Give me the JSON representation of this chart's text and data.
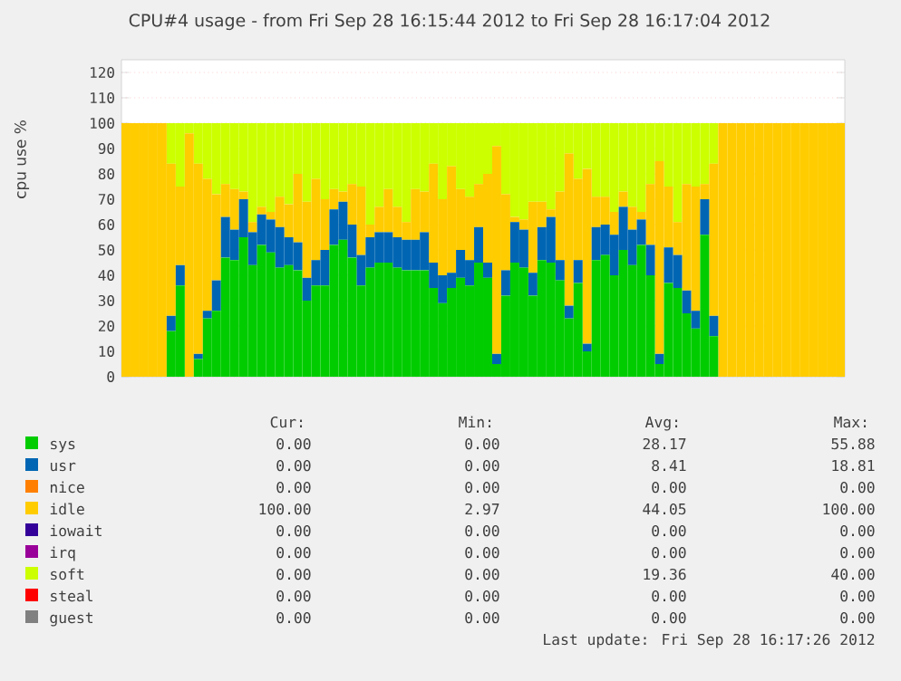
{
  "chart_data": {
    "type": "bar",
    "stacked": true,
    "title": "CPU#4 usage - from Fri Sep 28 16:15:44 2012 to Fri Sep 28 16:17:04 2012",
    "ylabel": "cpu use %",
    "categories": [
      null,
      null,
      null,
      null,
      null,
      null,
      null,
      null,
      null,
      null,
      null,
      null,
      null,
      null,
      null,
      null,
      null,
      null,
      null,
      null,
      null,
      null,
      null,
      null,
      null,
      null,
      null,
      null,
      null,
      null,
      null,
      null,
      null,
      null,
      null,
      null,
      null,
      null,
      null,
      null,
      null,
      null,
      null,
      null,
      null,
      null,
      null,
      null,
      null,
      null,
      null,
      null,
      null,
      null,
      null,
      null,
      null,
      null,
      null,
      null,
      null,
      null,
      null,
      null,
      null,
      null,
      null,
      null,
      null,
      null,
      null,
      null,
      null,
      null,
      null,
      null,
      null,
      null,
      null,
      null
    ],
    "ylim": [
      0,
      125
    ],
    "yticks": [
      0,
      10,
      20,
      30,
      40,
      50,
      60,
      70,
      80,
      90,
      100,
      110,
      120
    ],
    "grid": "y",
    "legend": "bottom",
    "tick_labels": "y",
    "series": [
      {
        "name": "sys",
        "color": "#00cc00",
        "values": [
          0,
          0,
          0,
          0,
          0,
          18,
          36,
          0,
          7,
          23,
          26,
          47,
          46,
          55,
          44,
          52,
          49,
          43,
          44,
          42,
          30,
          36,
          36,
          52,
          54,
          47,
          36,
          43,
          45,
          45,
          43,
          42,
          42,
          42,
          35,
          29,
          35,
          39,
          36,
          45,
          39,
          5,
          32,
          45,
          43,
          32,
          46,
          45,
          38,
          23,
          37,
          10,
          46,
          48,
          40,
          50,
          44,
          52,
          40,
          5,
          37,
          35,
          25,
          19,
          56,
          16,
          0,
          0,
          0,
          0,
          0,
          0,
          0,
          0,
          0,
          0,
          0,
          0,
          0,
          0
        ]
      },
      {
        "name": "usr",
        "color": "#0066b3",
        "values": [
          0,
          0,
          0,
          0,
          0,
          6,
          8,
          0,
          2,
          3,
          12,
          16,
          12,
          15,
          13,
          12,
          13,
          16,
          11,
          11,
          9,
          10,
          14,
          14,
          15,
          13,
          12,
          12,
          12,
          12,
          12,
          12,
          12,
          15,
          10,
          11,
          6,
          11,
          10,
          14,
          6,
          4,
          10,
          16,
          15,
          9,
          13,
          18,
          8,
          5,
          9,
          3,
          13,
          12,
          16,
          17,
          14,
          10,
          12,
          4,
          14,
          13,
          9,
          7,
          14,
          8,
          0,
          0,
          0,
          0,
          0,
          0,
          0,
          0,
          0,
          0,
          0,
          0,
          0,
          0
        ]
      },
      {
        "name": "nice",
        "color": "#ff8000",
        "values": [
          0,
          0,
          0,
          0,
          0,
          0,
          0,
          0,
          0,
          0,
          0,
          0,
          0,
          0,
          0,
          0,
          0,
          0,
          0,
          0,
          0,
          0,
          0,
          0,
          0,
          0,
          0,
          0,
          0,
          0,
          0,
          0,
          0,
          0,
          0,
          0,
          0,
          0,
          0,
          0,
          0,
          0,
          0,
          0,
          0,
          0,
          0,
          0,
          0,
          0,
          0,
          0,
          0,
          0,
          0,
          0,
          0,
          0,
          0,
          0,
          0,
          0,
          0,
          0,
          0,
          0,
          0,
          0,
          0,
          0,
          0,
          0,
          0,
          0,
          0,
          0,
          0,
          0,
          0,
          0
        ]
      },
      {
        "name": "idle",
        "color": "#ffcc00",
        "values": [
          100,
          100,
          100,
          100,
          100,
          60,
          31,
          96,
          75,
          52,
          34,
          13,
          16,
          3,
          4,
          3,
          3,
          12,
          13,
          27,
          30,
          32,
          20,
          8,
          4,
          16,
          27,
          5,
          10,
          17,
          12,
          7,
          20,
          16,
          39,
          30,
          42,
          24,
          25,
          17,
          35,
          82,
          30,
          2,
          4,
          28,
          10,
          3,
          27,
          60,
          32,
          69,
          12,
          11,
          9,
          6,
          9,
          3,
          24,
          76,
          24,
          13,
          42,
          49,
          6,
          60,
          100,
          100,
          100,
          100,
          100,
          100,
          100,
          100,
          100,
          100,
          100,
          100,
          100,
          100
        ]
      },
      {
        "name": "iowait",
        "color": "#330099",
        "values": [
          0,
          0,
          0,
          0,
          0,
          0,
          0,
          0,
          0,
          0,
          0,
          0,
          0,
          0,
          0,
          0,
          0,
          0,
          0,
          0,
          0,
          0,
          0,
          0,
          0,
          0,
          0,
          0,
          0,
          0,
          0,
          0,
          0,
          0,
          0,
          0,
          0,
          0,
          0,
          0,
          0,
          0,
          0,
          0,
          0,
          0,
          0,
          0,
          0,
          0,
          0,
          0,
          0,
          0,
          0,
          0,
          0,
          0,
          0,
          0,
          0,
          0,
          0,
          0,
          0,
          0,
          0,
          0,
          0,
          0,
          0,
          0,
          0,
          0,
          0,
          0,
          0,
          0,
          0,
          0
        ]
      },
      {
        "name": "irq",
        "color": "#990099",
        "values": [
          0,
          0,
          0,
          0,
          0,
          0,
          0,
          0,
          0,
          0,
          0,
          0,
          0,
          0,
          0,
          0,
          0,
          0,
          0,
          0,
          0,
          0,
          0,
          0,
          0,
          0,
          0,
          0,
          0,
          0,
          0,
          0,
          0,
          0,
          0,
          0,
          0,
          0,
          0,
          0,
          0,
          0,
          0,
          0,
          0,
          0,
          0,
          0,
          0,
          0,
          0,
          0,
          0,
          0,
          0,
          0,
          0,
          0,
          0,
          0,
          0,
          0,
          0,
          0,
          0,
          0,
          0,
          0,
          0,
          0,
          0,
          0,
          0,
          0,
          0,
          0,
          0,
          0,
          0,
          0
        ]
      },
      {
        "name": "soft",
        "color": "#ccff00",
        "values": [
          0,
          0,
          0,
          0,
          0,
          16,
          25,
          4,
          16,
          22,
          28,
          24,
          26,
          27,
          39,
          33,
          35,
          29,
          32,
          20,
          31,
          22,
          30,
          26,
          27,
          24,
          25,
          40,
          33,
          26,
          33,
          39,
          26,
          27,
          16,
          30,
          17,
          26,
          29,
          24,
          20,
          9,
          28,
          37,
          38,
          31,
          31,
          34,
          27,
          12,
          22,
          18,
          29,
          29,
          35,
          27,
          33,
          35,
          24,
          15,
          25,
          39,
          24,
          25,
          24,
          16,
          0,
          0,
          0,
          0,
          0,
          0,
          0,
          0,
          0,
          0,
          0,
          0,
          0,
          0
        ]
      },
      {
        "name": "steal",
        "color": "#ff0000",
        "values": [
          0,
          0,
          0,
          0,
          0,
          0,
          0,
          0,
          0,
          0,
          0,
          0,
          0,
          0,
          0,
          0,
          0,
          0,
          0,
          0,
          0,
          0,
          0,
          0,
          0,
          0,
          0,
          0,
          0,
          0,
          0,
          0,
          0,
          0,
          0,
          0,
          0,
          0,
          0,
          0,
          0,
          0,
          0,
          0,
          0,
          0,
          0,
          0,
          0,
          0,
          0,
          0,
          0,
          0,
          0,
          0,
          0,
          0,
          0,
          0,
          0,
          0,
          0,
          0,
          0,
          0,
          0,
          0,
          0,
          0,
          0,
          0,
          0,
          0,
          0,
          0,
          0,
          0,
          0,
          0
        ]
      },
      {
        "name": "guest",
        "color": "#808080",
        "values": [
          0,
          0,
          0,
          0,
          0,
          0,
          0,
          0,
          0,
          0,
          0,
          0,
          0,
          0,
          0,
          0,
          0,
          0,
          0,
          0,
          0,
          0,
          0,
          0,
          0,
          0,
          0,
          0,
          0,
          0,
          0,
          0,
          0,
          0,
          0,
          0,
          0,
          0,
          0,
          0,
          0,
          0,
          0,
          0,
          0,
          0,
          0,
          0,
          0,
          0,
          0,
          0,
          0,
          0,
          0,
          0,
          0,
          0,
          0,
          0,
          0,
          0,
          0,
          0,
          0,
          0,
          0,
          0,
          0,
          0,
          0,
          0,
          0,
          0,
          0,
          0,
          0,
          0,
          0,
          0
        ]
      }
    ],
    "annotations": [
      "Cur:",
      "Min:",
      "Avg:",
      "Max:",
      "0.00",
      "0.00",
      "28.17",
      "55.88",
      "0.00",
      "0.00",
      "8.41",
      "18.81",
      "0.00",
      "0.00",
      "0.00",
      "0.00",
      "100.00",
      "2.97",
      "44.05",
      "100.00",
      "0.00",
      "0.00",
      "0.00",
      "0.00",
      "0.00",
      "0.00",
      "0.00",
      "0.00",
      "0.00",
      "0.00",
      "19.36",
      "40.00",
      "0.00",
      "0.00",
      "0.00",
      "0.00",
      "0.00",
      "0.00",
      "0.00",
      "0.00",
      "Last update: Fri Sep 28 16:17:26 2012"
    ]
  }
}
